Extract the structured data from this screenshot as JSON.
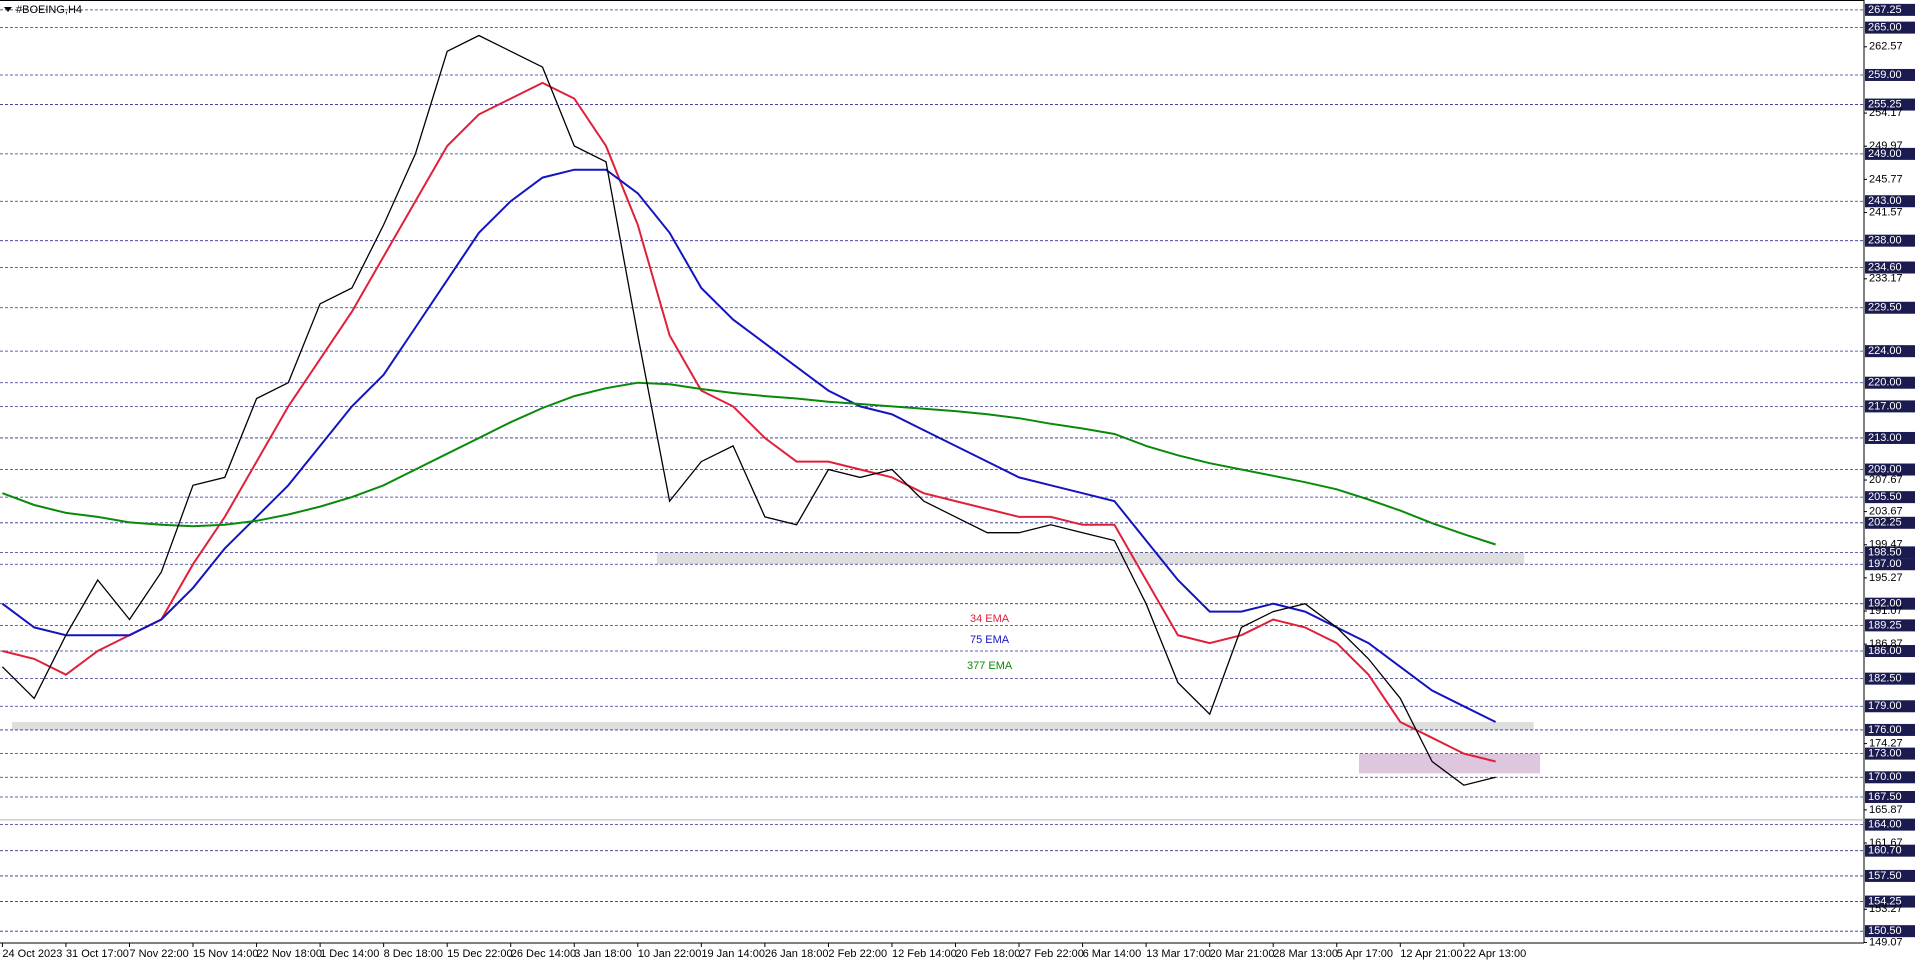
{
  "chart_data": {
    "type": "line",
    "title": "#BOEING,H4",
    "categories": [
      "24 Oct 2023",
      null,
      "31 Oct 17:00",
      null,
      "7 Nov 22:00",
      null,
      "15 Nov 14:00",
      null,
      "22 Nov 18:00",
      null,
      "1 Dec 14:00",
      null,
      "8 Dec 18:00",
      null,
      "15 Dec 22:00",
      null,
      "26 Dec 14:00",
      null,
      "3 Jan 18:00",
      null,
      "10 Jan 22:00",
      null,
      "19 Jan 14:00",
      null,
      "26 Jan 18:00",
      null,
      "2 Feb 22:00",
      null,
      "12 Feb 14:00",
      null,
      "20 Feb 18:00",
      null,
      "27 Feb 22:00",
      null,
      "6 Mar 14:00",
      null,
      "13 Mar 17:00",
      null,
      "20 Mar 21:00",
      null,
      "28 Mar 13:00",
      null,
      "5 Apr 17:00",
      null,
      "12 Apr 21:00",
      null,
      "22 Apr 13:00",
      null
    ],
    "values": [
      184,
      180,
      188,
      195,
      190,
      196,
      207,
      208,
      218,
      220,
      230,
      232,
      240,
      249,
      262,
      264,
      262,
      260,
      250,
      248,
      226,
      205,
      210,
      212,
      203,
      202,
      209,
      208,
      209,
      205,
      203,
      201,
      201,
      202,
      201,
      200,
      192,
      182,
      178,
      189,
      191,
      192,
      189,
      185,
      180,
      172,
      169,
      170
    ],
    "color": "#000000",
    "series": [
      {
        "name": "34 EMA",
        "color": "#e0203a",
        "values": [
          186,
          185,
          183,
          186,
          188,
          190,
          197,
          203,
          210,
          217,
          223,
          229,
          236,
          243,
          250,
          254,
          256,
          258,
          256,
          250,
          240,
          226,
          219,
          217,
          213,
          210,
          210,
          209,
          208,
          206,
          205,
          204,
          203,
          203,
          202,
          202,
          195,
          188,
          187,
          188,
          190,
          189,
          187,
          183,
          177,
          175,
          173,
          172
        ]
      },
      {
        "name": "75 EMA",
        "color": "#1414c0",
        "values": [
          192,
          189,
          188,
          188,
          188,
          190,
          194,
          199,
          203,
          207,
          212,
          217,
          221,
          227,
          233,
          239,
          243,
          246,
          247,
          247,
          244,
          239,
          232,
          228,
          225,
          222,
          219,
          217,
          216,
          214,
          212,
          210,
          208,
          207,
          206,
          205,
          200,
          195,
          191,
          191,
          192,
          191,
          189,
          187,
          184,
          181,
          179,
          177
        ]
      },
      {
        "name": "377 EMA",
        "color": "#0a8a0a",
        "values": [
          206,
          204.5,
          203.5,
          203,
          202.3,
          202,
          201.8,
          202,
          202.5,
          203.3,
          204.3,
          205.5,
          207,
          209,
          211,
          213,
          215,
          216.8,
          218.3,
          219.3,
          220,
          219.8,
          219.2,
          218.7,
          218.3,
          218,
          217.6,
          217.3,
          217,
          216.7,
          216.4,
          216,
          215.5,
          214.8,
          214.2,
          213.5,
          212,
          210.8,
          209.8,
          209,
          208.2,
          207.4,
          206.5,
          205.2,
          203.8,
          202.2,
          200.8,
          199.5
        ]
      }
    ],
    "ylim": [
      149,
      268.5
    ],
    "yticks": [
      262.57,
      254.17,
      249.97,
      245.77,
      241.57,
      233.17,
      207.67,
      203.67,
      199.47,
      195.27,
      191.07,
      186.87,
      174.27,
      165.87,
      161.67,
      153.27,
      149.07
    ],
    "levels": [
      267.25,
      {
        "value": 265,
        "label": "265.00"
      },
      {
        "value": 259,
        "label": "259.00"
      },
      255.25,
      {
        "value": 249,
        "label": "249.00"
      },
      {
        "value": 243,
        "label": "243.00"
      },
      {
        "value": 238,
        "label": "238.00"
      },
      {
        "value": 234.6,
        "label": "234.60"
      },
      {
        "value": 229.5,
        "label": "229.50"
      },
      {
        "value": 224,
        "label": "224.00"
      },
      {
        "value": 220,
        "label": "220.00"
      },
      {
        "value": 217,
        "label": "217.00"
      },
      {
        "value": 213,
        "label": "213.00"
      },
      {
        "value": 209,
        "label": "209.00"
      },
      {
        "value": 205.5,
        "label": "205.50"
      },
      202.25,
      {
        "value": 198.5,
        "label": "198.50"
      },
      {
        "value": 197,
        "label": "197.00"
      },
      {
        "value": 192,
        "label": "192.00"
      },
      189.25,
      {
        "value": 186,
        "label": "186.00"
      },
      {
        "value": 182.5,
        "label": "182.50"
      },
      {
        "value": 179,
        "label": "179.00"
      },
      {
        "value": 176,
        "label": "176.00"
      },
      {
        "value": 173,
        "label": "173.00"
      },
      {
        "value": 170,
        "label": "170.00"
      },
      {
        "value": 167.5,
        "label": "167.50"
      },
      {
        "value": 164,
        "label": "164.00"
      },
      {
        "value": 160.7,
        "label": "160.70"
      },
      {
        "value": 157.5,
        "label": "157.50"
      },
      154.25,
      {
        "value": 150.5,
        "label": "150.50"
      }
    ],
    "zones": [
      {
        "x": [
          20.6,
          47.9
        ],
        "y": [
          197,
          198.5
        ],
        "color": "#d8d8d8"
      },
      {
        "x": [
          0.3,
          48.2
        ],
        "y": [
          176,
          177
        ],
        "color": "#d8d8d8"
      },
      {
        "x": [
          42.7,
          48.4
        ],
        "y": [
          170.5,
          173
        ],
        "color": "#d9bcd9"
      }
    ],
    "price_line": 164.6
  }
}
